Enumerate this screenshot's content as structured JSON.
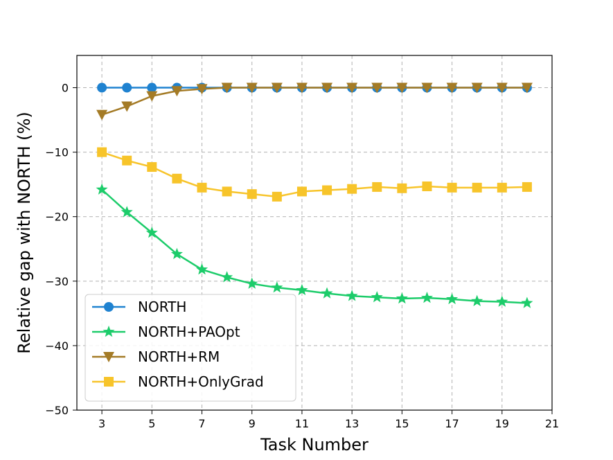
{
  "chart_data": {
    "type": "line",
    "xlabel": "Task Number",
    "ylabel": "Relative gap with NORTH (%)",
    "xlim": [
      2,
      21
    ],
    "ylim": [
      -50,
      5
    ],
    "xticks": [
      3,
      5,
      7,
      9,
      11,
      13,
      15,
      17,
      19,
      21
    ],
    "yticks": [
      0,
      -10,
      -20,
      -30,
      -40,
      -50
    ],
    "grid": true,
    "legend_position": "lower-left",
    "x": [
      3,
      4,
      5,
      6,
      7,
      8,
      9,
      10,
      11,
      12,
      13,
      14,
      15,
      16,
      17,
      18,
      19,
      20
    ],
    "series": [
      {
        "name": "NORTH",
        "color": "#1f82d0",
        "marker": "circle",
        "values": [
          0,
          0,
          0,
          0,
          0,
          0,
          0,
          0,
          0,
          0,
          0,
          0,
          0,
          0,
          0,
          0,
          0,
          0
        ]
      },
      {
        "name": "NORTH+PAOpt",
        "color": "#1ccc6a",
        "marker": "star",
        "values": [
          -15.8,
          -19.3,
          -22.5,
          -25.8,
          -28.2,
          -29.4,
          -30.4,
          -31.0,
          -31.4,
          -31.9,
          -32.3,
          -32.5,
          -32.7,
          -32.6,
          -32.8,
          -33.1,
          -33.2,
          -33.4
        ]
      },
      {
        "name": "NORTH+RM",
        "color": "#a47b26",
        "marker": "triangle-down",
        "values": [
          -4.2,
          -2.9,
          -1.3,
          -0.5,
          -0.2,
          0,
          0,
          0,
          0,
          0,
          0,
          0,
          0,
          0,
          0,
          0,
          0,
          0
        ]
      },
      {
        "name": "NORTH+OnlyGrad",
        "color": "#f7c42a",
        "marker": "square",
        "values": [
          -10.0,
          -11.3,
          -12.3,
          -14.1,
          -15.5,
          -16.1,
          -16.5,
          -16.9,
          -16.1,
          -15.9,
          -15.7,
          -15.4,
          -15.6,
          -15.3,
          -15.5,
          -15.5,
          -15.5,
          -15.4
        ]
      }
    ]
  }
}
